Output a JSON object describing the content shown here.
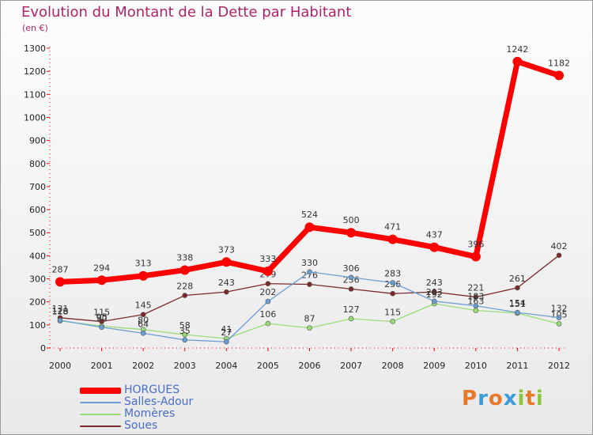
{
  "header": {
    "title": "Evolution du Montant de la Dette par Habitant",
    "subtitle": "(en €)"
  },
  "logo": {
    "text": "Proxiti",
    "letter_colors": [
      "#e8792a",
      "#3a9bd5",
      "#e8792a",
      "#3a9bd5",
      "#8cc63f",
      "#e8792a",
      "#8cc63f"
    ]
  },
  "chart_data": {
    "type": "line",
    "title": "Evolution du Montant de la Dette par Habitant",
    "subtitle": "(en €)",
    "xlabel": "",
    "ylabel": "",
    "x": [
      "2000",
      "2001",
      "2002",
      "2003",
      "2004",
      "2005",
      "2006",
      "2007",
      "2008",
      "2009",
      "2010",
      "2011",
      "2012"
    ],
    "ylim": [
      0,
      1300
    ],
    "yticks": [
      0,
      100,
      200,
      300,
      400,
      500,
      600,
      700,
      800,
      900,
      1000,
      1100,
      1200,
      1300
    ],
    "grid": false,
    "legend_position": "bottom-left",
    "series": [
      {
        "name": "HORGUES",
        "color": "#ff0000",
        "values": [
          287,
          294,
          313,
          338,
          373,
          333,
          524,
          500,
          471,
          437,
          396,
          1242,
          1182
        ]
      },
      {
        "name": "Salles-Adour",
        "color": "#6a9fd4",
        "values": [
          120,
          90,
          64,
          35,
          27,
          202,
          330,
          306,
          283,
          203,
          183,
          154,
          132
        ]
      },
      {
        "name": "Momères",
        "color": "#99dd77",
        "values": [
          118,
          95,
          80,
          58,
          41,
          106,
          87,
          127,
          115,
          192,
          163,
          151,
          105
        ]
      },
      {
        "name": "Soues",
        "color": "#7a2a2a",
        "values": [
          131,
          115,
          145,
          228,
          243,
          279,
          276,
          256,
          236,
          243,
          221,
          261,
          402
        ]
      }
    ]
  }
}
